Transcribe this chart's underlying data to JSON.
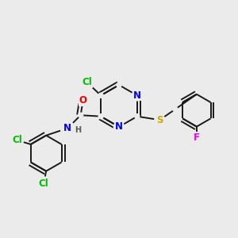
{
  "bg_color": "#ebebeb",
  "bond_color": "#1a1a1a",
  "bond_width": 1.4,
  "atom_colors": {
    "N": "#0000ee",
    "O": "#ee0000",
    "S": "#ccaa00",
    "Cl": "#00bb00",
    "F": "#ee00ee",
    "H": "#555555",
    "C": "#1a1a1a"
  },
  "font_size": 8.5,
  "fig_size": [
    3.0,
    3.0
  ],
  "dpi": 100
}
